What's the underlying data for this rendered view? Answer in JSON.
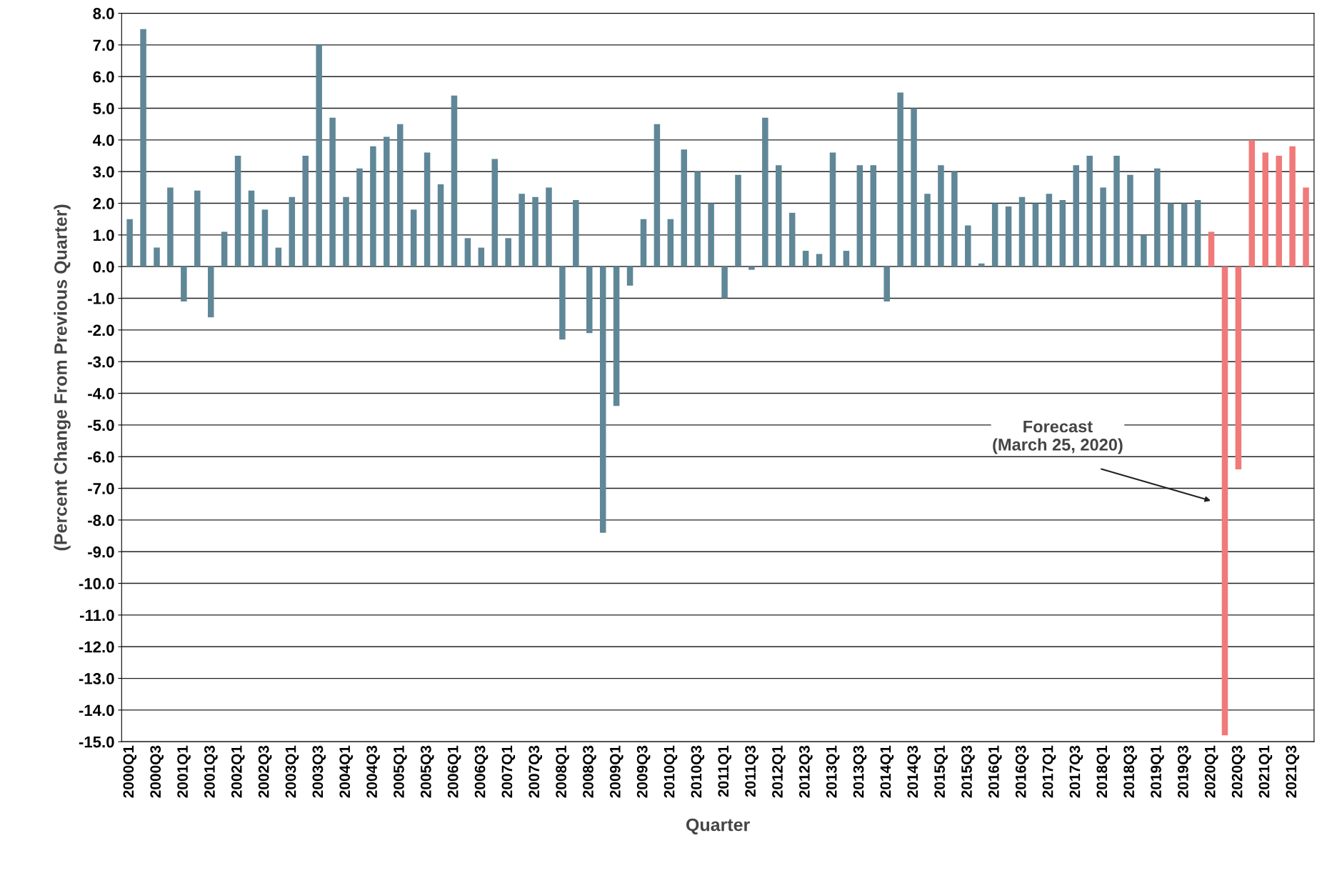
{
  "chart_data": {
    "type": "bar",
    "xlabel": "Quarter",
    "ylabel": "(Percent Change From Previous Quarter)",
    "categories": [
      "2000Q1",
      null,
      "2000Q3",
      null,
      "2001Q1",
      null,
      "2001Q3",
      null,
      "2002Q1",
      null,
      "2002Q3",
      null,
      "2003Q1",
      null,
      "2003Q3",
      null,
      "2004Q1",
      null,
      "2004Q3",
      null,
      "2005Q1",
      null,
      "2005Q3",
      null,
      "2006Q1",
      null,
      "2006Q3",
      null,
      "2007Q1",
      null,
      "2007Q3",
      null,
      "2008Q1",
      null,
      "2008Q3",
      null,
      "2009Q1",
      null,
      "2009Q3",
      null,
      "2010Q1",
      null,
      "2010Q3",
      null,
      "2011Q1",
      null,
      "2011Q3",
      null,
      "2012Q1",
      null,
      "2012Q3",
      null,
      "2013Q1",
      null,
      "2013Q3",
      null,
      "2014Q1",
      null,
      "2014Q3",
      null,
      "2015Q1",
      null,
      "2015Q3",
      null,
      "2016Q1",
      null,
      "2016Q3",
      null,
      "2017Q1",
      null,
      "2017Q3",
      null,
      "2018Q1",
      null,
      "2018Q3",
      null,
      "2019Q1",
      null,
      "2019Q3",
      null,
      "2020Q1",
      null,
      "2020Q3",
      null,
      "2021Q1",
      null,
      "2021Q3",
      null
    ],
    "values": [
      1.5,
      7.5,
      0.6,
      2.5,
      -1.1,
      2.4,
      -1.6,
      1.1,
      3.5,
      2.4,
      1.8,
      0.6,
      2.2,
      3.5,
      7.0,
      4.7,
      2.2,
      3.1,
      3.8,
      4.1,
      4.5,
      1.8,
      3.6,
      2.6,
      5.4,
      0.9,
      0.6,
      3.4,
      0.9,
      2.3,
      2.2,
      2.5,
      -2.3,
      2.1,
      -2.1,
      -8.4,
      -4.4,
      -0.6,
      1.5,
      4.5,
      1.5,
      3.7,
      3.0,
      2.0,
      -1.0,
      2.9,
      -0.1,
      4.7,
      3.2,
      1.7,
      0.5,
      0.4,
      3.6,
      0.5,
      3.2,
      3.2,
      -1.1,
      5.5,
      5.0,
      2.3,
      3.2,
      3.0,
      1.3,
      0.1,
      2.0,
      1.9,
      2.2,
      2.0,
      2.3,
      2.1,
      3.2,
      3.5,
      2.5,
      3.5,
      2.9,
      1.0,
      3.1,
      2.0,
      2.0,
      2.1,
      1.1,
      -14.8,
      -6.4,
      4.0,
      3.6,
      3.5,
      3.8,
      2.5
    ],
    "colors": [
      "#5f8797",
      "#5f8797",
      "#5f8797",
      "#5f8797",
      "#5f8797",
      "#5f8797",
      "#5f8797",
      "#5f8797",
      "#5f8797",
      "#5f8797",
      "#5f8797",
      "#5f8797",
      "#5f8797",
      "#5f8797",
      "#5f8797",
      "#5f8797",
      "#5f8797",
      "#5f8797",
      "#5f8797",
      "#5f8797",
      "#5f8797",
      "#5f8797",
      "#5f8797",
      "#5f8797",
      "#5f8797",
      "#5f8797",
      "#5f8797",
      "#5f8797",
      "#5f8797",
      "#5f8797",
      "#5f8797",
      "#5f8797",
      "#5f8797",
      "#5f8797",
      "#5f8797",
      "#5f8797",
      "#5f8797",
      "#5f8797",
      "#5f8797",
      "#5f8797",
      "#5f8797",
      "#5f8797",
      "#5f8797",
      "#5f8797",
      "#5f8797",
      "#5f8797",
      "#5f8797",
      "#5f8797",
      "#5f8797",
      "#5f8797",
      "#5f8797",
      "#5f8797",
      "#5f8797",
      "#5f8797",
      "#5f8797",
      "#5f8797",
      "#5f8797",
      "#5f8797",
      "#5f8797",
      "#5f8797",
      "#5f8797",
      "#5f8797",
      "#5f8797",
      "#5f8797",
      "#5f8797",
      "#5f8797",
      "#5f8797",
      "#5f8797",
      "#5f8797",
      "#5f8797",
      "#5f8797",
      "#5f8797",
      "#5f8797",
      "#5f8797",
      "#5f8797",
      "#5f8797",
      "#5f8797",
      "#5f8797",
      "#5f8797",
      "#5f8797",
      "#f07a7a",
      "#f07a7a",
      "#f07a7a",
      "#f07a7a",
      "#f07a7a",
      "#f07a7a",
      "#f07a7a",
      "#f07a7a"
    ],
    "ylim": [
      -15,
      8
    ],
    "yticks": [
      {
        "value": 8,
        "label": "8.0"
      },
      {
        "value": 7,
        "label": "7.0"
      },
      {
        "value": 6,
        "label": "6.0"
      },
      {
        "value": 5,
        "label": "5.0"
      },
      {
        "value": 4,
        "label": "4.0"
      },
      {
        "value": 3,
        "label": "3.0"
      },
      {
        "value": 2,
        "label": "2.0"
      },
      {
        "value": 1,
        "label": "1.0"
      },
      {
        "value": 0,
        "label": "0.0"
      },
      {
        "value": -1,
        "label": "-1.0"
      },
      {
        "value": -2,
        "label": "-2.0"
      },
      {
        "value": -3,
        "label": "-3.0"
      },
      {
        "value": -4,
        "label": "-4.0"
      },
      {
        "value": -5,
        "label": "-5.0"
      },
      {
        "value": -6,
        "label": "-6.0"
      },
      {
        "value": -7,
        "label": "-7.0"
      },
      {
        "value": -8,
        "label": "-8.0"
      },
      {
        "value": -9,
        "label": "-9.0"
      },
      {
        "value": -10,
        "label": "-10.0"
      },
      {
        "value": -11,
        "label": "-11.0"
      },
      {
        "value": -12,
        "label": "-12.0"
      },
      {
        "value": -13,
        "label": "-13.0"
      },
      {
        "value": -14,
        "label": "-14.0"
      },
      {
        "value": -15,
        "label": "-15.0"
      }
    ],
    "grid": "y",
    "annotations": [
      "Forecast\n(March 25, 2020)"
    ]
  }
}
